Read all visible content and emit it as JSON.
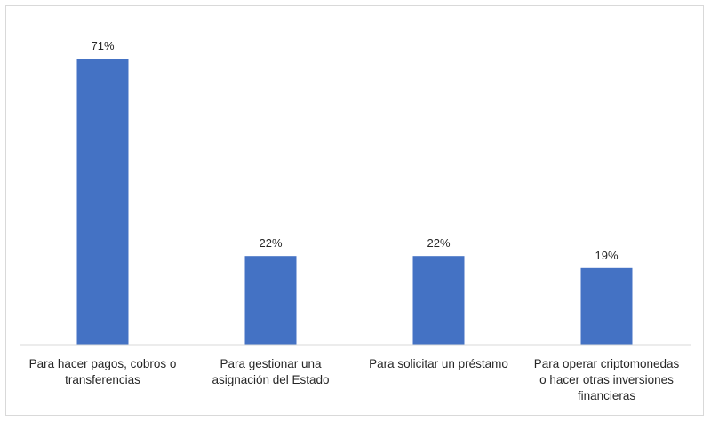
{
  "chart_data": {
    "type": "bar",
    "title": "",
    "xlabel": "",
    "ylabel": "",
    "ylim": [
      0,
      80
    ],
    "grid": false,
    "legend": "none",
    "bar_color": "#4472c4",
    "categories": [
      [
        "Para hacer pagos, cobros o",
        "transferencias"
      ],
      [
        "Para gestionar una",
        "asignación del Estado"
      ],
      [
        "Para solicitar un préstamo"
      ],
      [
        "Para operar criptomonedas",
        "o hacer otras inversiones",
        "financieras"
      ]
    ],
    "values": [
      71,
      22,
      22,
      19
    ],
    "data_labels": [
      "71%",
      "22%",
      "22%",
      "19%"
    ]
  }
}
